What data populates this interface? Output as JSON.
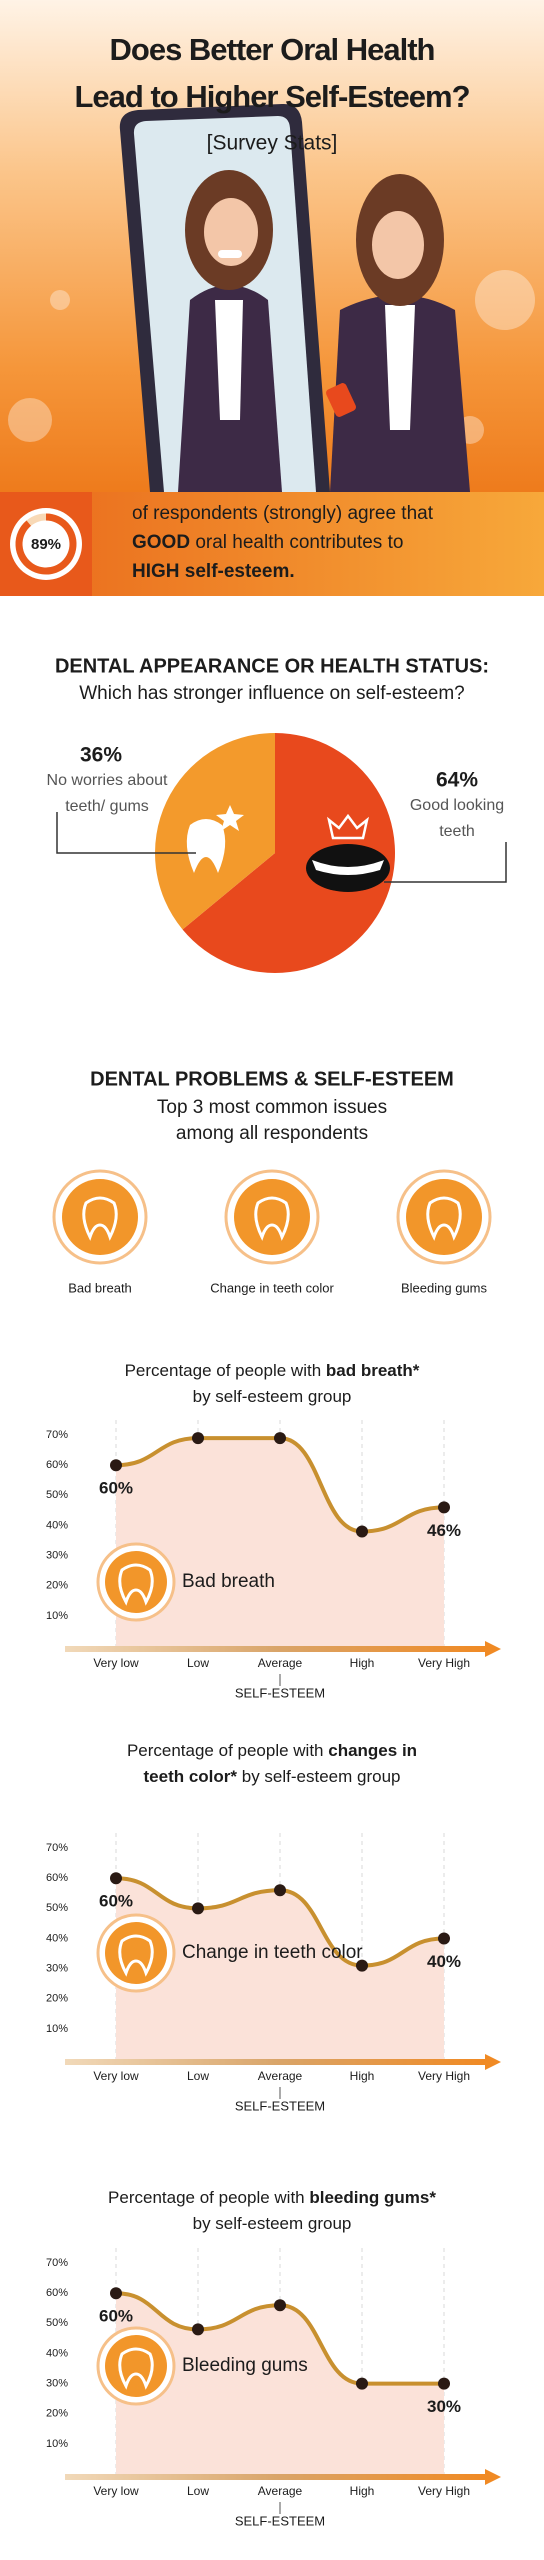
{
  "header": {
    "title_lines": [
      "Does Better Oral Health",
      "Lead to Higher Self-Esteem?"
    ],
    "subtitle": "[Survey Stats]"
  },
  "stat": {
    "value": 89,
    "label": "89%",
    "text_lines": [
      [
        {
          "text": "of respondents (strongly) agree that"
        }
      ],
      [
        {
          "text": "GOOD",
          "bold": true
        },
        {
          "text": " oral health contributes to"
        }
      ],
      [
        {
          "text": "HIGH self-esteem.",
          "bold": true
        }
      ]
    ]
  },
  "appearance": {
    "heading": "DENTAL APPEARANCE OR HEALTH STATUS:",
    "question": "Which has stronger influence on self-esteem?"
  },
  "problems": {
    "heading": "DENTAL PROBLEMS & SELF-ESTEEM",
    "subheading_lines": [
      "Top 3 most common issues",
      "among all respondents"
    ],
    "issues": [
      "Bad breath",
      "Change in teeth color",
      "Bleeding gums"
    ]
  },
  "chart_data": [
    {
      "type": "pie",
      "categories": [
        "No worries about teeth/ gums",
        "Good looking teeth"
      ],
      "values": [
        36,
        64
      ],
      "value_labels": [
        "36%",
        "64%"
      ],
      "colors": [
        "#f39a2c",
        "#e8491d"
      ]
    },
    {
      "type": "line",
      "title_lines": [
        [
          {
            "text": "Percentage of people with "
          },
          {
            "text": "bad breath*",
            "bold": true
          }
        ],
        [
          {
            "text": "by self-esteem group"
          }
        ]
      ],
      "categories": [
        "Very low",
        "Low",
        "Average",
        "High",
        "Very High"
      ],
      "series": [
        {
          "name": "Bad breath",
          "color": "#c8902f",
          "fill": "#fbe2d9",
          "values": [
            60,
            69,
            69,
            38,
            46
          ],
          "value_labels": [
            "60%",
            null,
            null,
            null,
            "46%"
          ]
        }
      ],
      "xlabel": "SELF-ESTEEM",
      "ylim": [
        0,
        75
      ],
      "yticks": [
        {
          "value": 10,
          "label": "10%"
        },
        {
          "value": 20,
          "label": "20%"
        },
        {
          "value": 30,
          "label": "30%"
        },
        {
          "value": 40,
          "label": "40%"
        },
        {
          "value": 50,
          "label": "50%"
        },
        {
          "value": 60,
          "label": "60%"
        },
        {
          "value": 70,
          "label": "70%"
        }
      ]
    },
    {
      "type": "line",
      "title_lines": [
        [
          {
            "text": "Percentage of people with "
          },
          {
            "text": "changes in",
            "bold": true
          }
        ],
        [
          {
            "text": "teeth color*",
            "bold": true
          },
          {
            "text": " by self-esteem group"
          }
        ]
      ],
      "categories": [
        "Very low",
        "Low",
        "Average",
        "High",
        "Very High"
      ],
      "series": [
        {
          "name": "Change in teeth color",
          "color": "#c8902f",
          "fill": "#fbe2d9",
          "values": [
            60,
            50,
            56,
            31,
            40
          ],
          "value_labels": [
            "60%",
            null,
            null,
            null,
            "40%"
          ]
        }
      ],
      "xlabel": "SELF-ESTEEM",
      "ylim": [
        0,
        75
      ],
      "yticks": [
        {
          "value": 10,
          "label": "10%"
        },
        {
          "value": 20,
          "label": "20%"
        },
        {
          "value": 30,
          "label": "30%"
        },
        {
          "value": 40,
          "label": "40%"
        },
        {
          "value": 50,
          "label": "50%"
        },
        {
          "value": 60,
          "label": "60%"
        },
        {
          "value": 70,
          "label": "70%"
        }
      ]
    },
    {
      "type": "line",
      "title_lines": [
        [
          {
            "text": "Percentage of people with "
          },
          {
            "text": "bleeding gums*",
            "bold": true
          }
        ],
        [
          {
            "text": "by self-esteem group"
          }
        ]
      ],
      "categories": [
        "Very low",
        "Low",
        "Average",
        "High",
        "Very High"
      ],
      "series": [
        {
          "name": "Bleeding gums",
          "color": "#c8902f",
          "fill": "#fbe2d9",
          "values": [
            60,
            48,
            56,
            30,
            30
          ],
          "value_labels": [
            "60%",
            null,
            null,
            null,
            "30%"
          ]
        }
      ],
      "xlabel": "SELF-ESTEEM",
      "ylim": [
        0,
        75
      ],
      "yticks": [
        {
          "value": 10,
          "label": "10%"
        },
        {
          "value": 20,
          "label": "20%"
        },
        {
          "value": 30,
          "label": "30%"
        },
        {
          "value": 40,
          "label": "40%"
        },
        {
          "value": 50,
          "label": "50%"
        },
        {
          "value": 60,
          "label": "60%"
        },
        {
          "value": 70,
          "label": "70%"
        }
      ]
    }
  ]
}
